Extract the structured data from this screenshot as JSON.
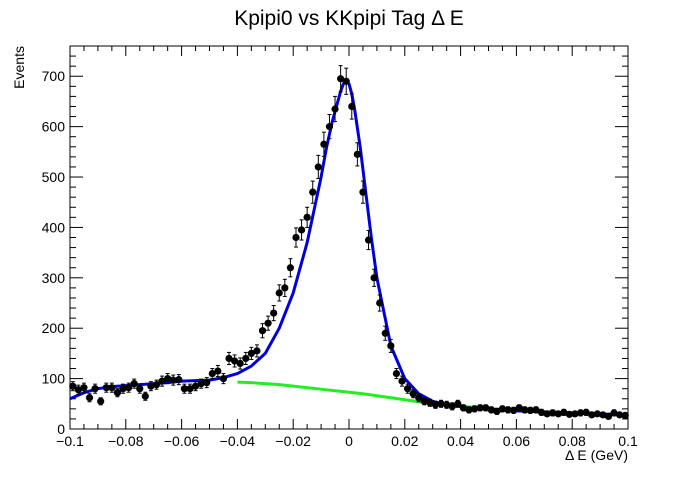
{
  "chart_data": {
    "type": "scatter",
    "title": "Kpipi0 vs KKpipi Tag Δ E",
    "xlabel": "Δ E (GeV)",
    "ylabel": "Events",
    "xlim": [
      -0.1,
      0.1
    ],
    "ylim": [
      0,
      760
    ],
    "xticks": [
      -0.1,
      -0.08,
      -0.06,
      -0.04,
      -0.02,
      0,
      0.02,
      0.04,
      0.06,
      0.08,
      0.1
    ],
    "xtick_labels": [
      "−0.1",
      "−0.08",
      "−0.06",
      "−0.04",
      "−0.02",
      "0",
      "0.02",
      "0.04",
      "0.06",
      "0.08",
      "0.1"
    ],
    "yticks": [
      0,
      100,
      200,
      300,
      400,
      500,
      600,
      700
    ],
    "ytick_labels": [
      "0",
      "100",
      "200",
      "300",
      "400",
      "500",
      "600",
      "700"
    ],
    "grid": false,
    "series": [
      {
        "kind": "points-with-error-bars",
        "color": "#000000",
        "x": [
          -0.099,
          -0.097,
          -0.095,
          -0.093,
          -0.091,
          -0.089,
          -0.087,
          -0.085,
          -0.083,
          -0.081,
          -0.079,
          -0.077,
          -0.075,
          -0.073,
          -0.071,
          -0.069,
          -0.067,
          -0.065,
          -0.063,
          -0.061,
          -0.059,
          -0.057,
          -0.055,
          -0.053,
          -0.051,
          -0.049,
          -0.047,
          -0.045,
          -0.043,
          -0.041,
          -0.039,
          -0.037,
          -0.035,
          -0.033,
          -0.031,
          -0.029,
          -0.027,
          -0.025,
          -0.023,
          -0.021,
          -0.019,
          -0.017,
          -0.015,
          -0.013,
          -0.011,
          -0.009,
          -0.007,
          -0.005,
          -0.003,
          -0.001,
          0.001,
          0.003,
          0.005,
          0.007,
          0.009,
          0.011,
          0.013,
          0.015,
          0.017,
          0.019,
          0.021,
          0.023,
          0.025,
          0.027,
          0.029,
          0.031,
          0.033,
          0.035,
          0.037,
          0.039,
          0.041,
          0.043,
          0.045,
          0.047,
          0.049,
          0.051,
          0.053,
          0.055,
          0.057,
          0.059,
          0.061,
          0.063,
          0.065,
          0.067,
          0.069,
          0.071,
          0.073,
          0.075,
          0.077,
          0.079,
          0.081,
          0.083,
          0.085,
          0.087,
          0.089,
          0.091,
          0.093,
          0.095,
          0.097,
          0.099
        ],
        "y": [
          85,
          78,
          82,
          62,
          80,
          55,
          82,
          82,
          72,
          80,
          82,
          90,
          80,
          65,
          85,
          88,
          95,
          100,
          97,
          98,
          80,
          80,
          85,
          90,
          92,
          110,
          115,
          100,
          140,
          135,
          130,
          140,
          150,
          155,
          195,
          210,
          230,
          270,
          280,
          320,
          380,
          395,
          420,
          470,
          520,
          565,
          600,
          635,
          695,
          690,
          640,
          545,
          470,
          375,
          300,
          250,
          190,
          165,
          110,
          95,
          80,
          70,
          62,
          55,
          52,
          48,
          50,
          48,
          45,
          50,
          42,
          38,
          40,
          42,
          42,
          38,
          35,
          40,
          38,
          37,
          42,
          38,
          37,
          38,
          33,
          30,
          32,
          30,
          33,
          29,
          30,
          32,
          33,
          28,
          30,
          28,
          25,
          32,
          28,
          27
        ],
        "err": [
          9,
          9,
          9,
          8,
          9,
          7,
          9,
          9,
          8,
          9,
          9,
          9,
          9,
          8,
          9,
          9,
          10,
          10,
          10,
          10,
          9,
          9,
          9,
          9,
          10,
          10,
          11,
          10,
          12,
          12,
          11,
          12,
          12,
          12,
          14,
          14,
          15,
          16,
          17,
          18,
          19,
          20,
          20,
          22,
          23,
          24,
          24,
          25,
          26,
          26,
          25,
          23,
          22,
          19,
          17,
          16,
          14,
          13,
          10,
          10,
          9,
          8,
          8,
          7,
          7,
          7,
          7,
          7,
          7,
          7,
          6,
          6,
          6,
          6,
          6,
          6,
          6,
          6,
          6,
          6,
          6,
          6,
          6,
          6,
          6,
          5,
          6,
          5,
          6,
          5,
          5,
          6,
          6,
          5,
          5,
          5,
          5,
          6,
          5,
          5
        ]
      },
      {
        "kind": "curve",
        "color": "#0000dd",
        "x": [
          -0.1,
          -0.095,
          -0.09,
          -0.085,
          -0.08,
          -0.075,
          -0.07,
          -0.065,
          -0.06,
          -0.055,
          -0.05,
          -0.045,
          -0.04,
          -0.035,
          -0.03,
          -0.025,
          -0.02,
          -0.015,
          -0.01,
          -0.008,
          -0.006,
          -0.004,
          -0.003,
          -0.002,
          -0.001,
          0,
          0.001,
          0.002,
          0.004,
          0.006,
          0.008,
          0.01,
          0.015,
          0.02,
          0.025,
          0.03,
          0.035,
          0.04,
          0.045,
          0.05,
          0.055,
          0.06,
          0.065,
          0.07,
          0.075,
          0.08,
          0.085,
          0.09,
          0.095,
          0.1
        ],
        "y": [
          60,
          72,
          80,
          84,
          86,
          88,
          90,
          92,
          95,
          96,
          97,
          102,
          110,
          125,
          150,
          200,
          270,
          370,
          500,
          560,
          610,
          650,
          670,
          685,
          690,
          685,
          665,
          635,
          560,
          470,
          380,
          300,
          165,
          100,
          70,
          55,
          48,
          45,
          42,
          40,
          38,
          36,
          35,
          34,
          33,
          32,
          31,
          30,
          29,
          27
        ]
      },
      {
        "kind": "curve",
        "color": "#22ee22",
        "x": [
          -0.04,
          -0.035,
          -0.03,
          -0.025,
          -0.02,
          -0.015,
          -0.01,
          -0.005,
          0,
          0.005,
          0.01,
          0.015,
          0.02,
          0.025,
          0.03,
          0.035,
          0.04,
          0.045
        ],
        "y": [
          93,
          92,
          90,
          88,
          85,
          82,
          79,
          76,
          73,
          70,
          66,
          62,
          58,
          54,
          50,
          47,
          45,
          43
        ]
      }
    ]
  }
}
